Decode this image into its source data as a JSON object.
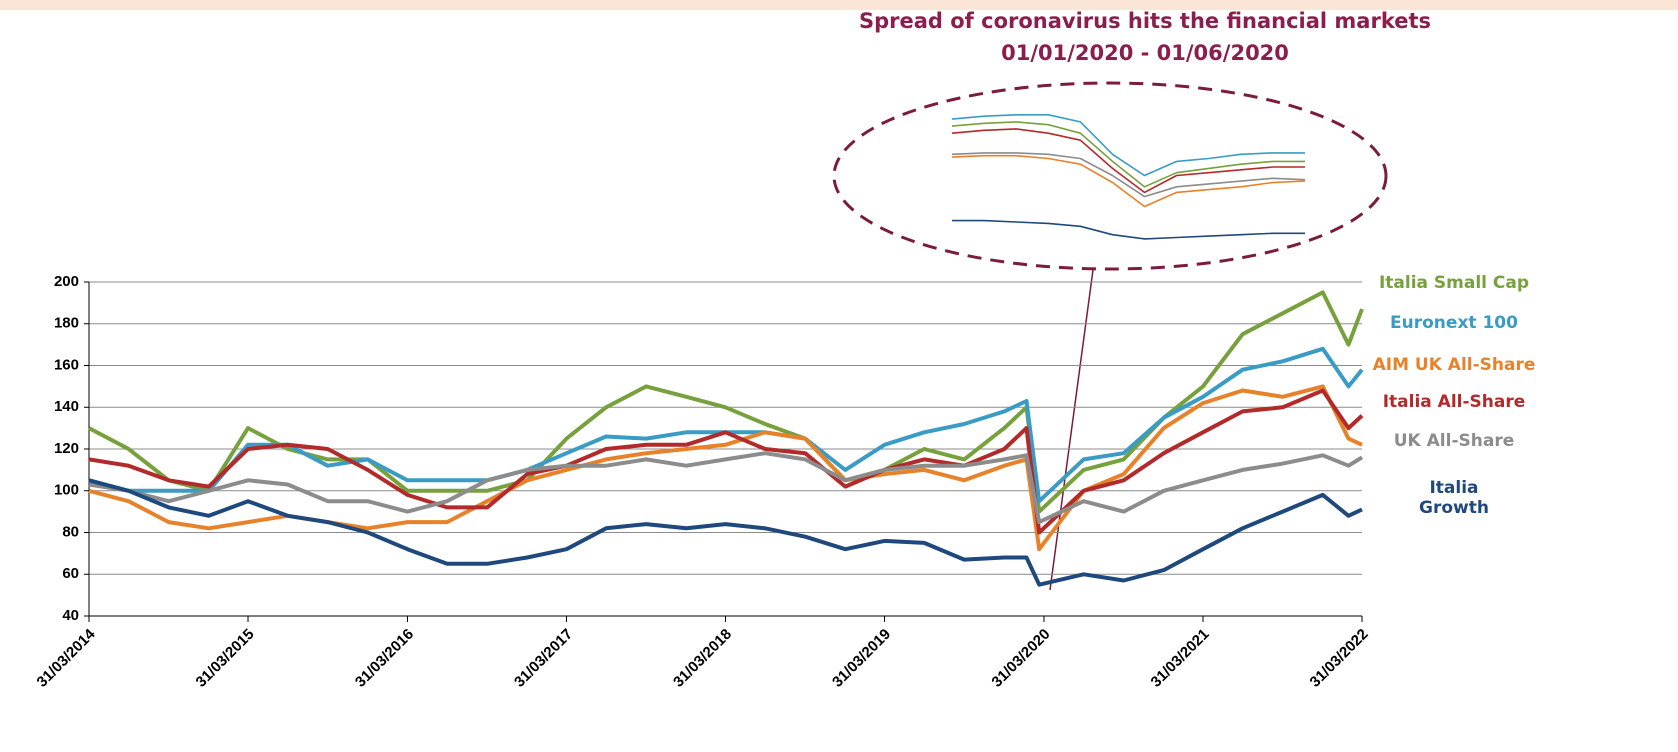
{
  "chart_data": [
    {
      "type": "line",
      "x": [
        "31/03/2014",
        "30/06/2014",
        "30/09/2014",
        "31/12/2014",
        "31/03/2015",
        "30/06/2015",
        "30/09/2015",
        "31/12/2015",
        "31/03/2016",
        "30/06/2016",
        "30/09/2016",
        "31/12/2016",
        "31/03/2017",
        "30/06/2017",
        "30/09/2017",
        "31/12/2017",
        "31/03/2018",
        "30/06/2018",
        "30/09/2018",
        "31/12/2018",
        "31/03/2019",
        "30/06/2019",
        "30/09/2019",
        "31/12/2019",
        "20/02/2020",
        "20/03/2020",
        "30/06/2020",
        "30/09/2020",
        "31/12/2020",
        "31/03/2021",
        "30/06/2021",
        "30/09/2021",
        "31/12/2021",
        "28/02/2022",
        "31/03/2022"
      ],
      "series": [
        {
          "name": "Italia Small Cap",
          "color": "#77a13c",
          "values": [
            130,
            120,
            105,
            100,
            130,
            120,
            115,
            115,
            100,
            100,
            100,
            105,
            125,
            140,
            150,
            145,
            140,
            132,
            125,
            105,
            110,
            120,
            115,
            130,
            140,
            90,
            110,
            115,
            135,
            150,
            175,
            185,
            195,
            170,
            187
          ]
        },
        {
          "name": "Euronext 100",
          "color": "#3a9cc4",
          "values": [
            105,
            100,
            100,
            100,
            122,
            122,
            112,
            115,
            105,
            105,
            105,
            110,
            118,
            126,
            125,
            128,
            128,
            128,
            125,
            110,
            122,
            128,
            132,
            138,
            143,
            95,
            115,
            118,
            135,
            145,
            158,
            162,
            168,
            150,
            158
          ]
        },
        {
          "name": "AIM UK All-Share",
          "color": "#e8822a",
          "values": [
            100,
            95,
            85,
            82,
            85,
            88,
            85,
            82,
            85,
            85,
            95,
            105,
            110,
            115,
            118,
            120,
            122,
            128,
            125,
            105,
            108,
            110,
            105,
            112,
            115,
            72,
            100,
            108,
            130,
            142,
            148,
            145,
            150,
            125,
            122
          ]
        },
        {
          "name": "Italia All-Share",
          "color": "#b22a2a",
          "values": [
            115,
            112,
            105,
            102,
            120,
            122,
            120,
            110,
            98,
            92,
            92,
            108,
            112,
            120,
            122,
            122,
            128,
            120,
            118,
            102,
            110,
            115,
            112,
            120,
            130,
            80,
            100,
            105,
            118,
            128,
            138,
            140,
            148,
            130,
            136
          ]
        },
        {
          "name": "UK All-Share",
          "color": "#8c8c8c",
          "values": [
            103,
            100,
            95,
            100,
            105,
            103,
            95,
            95,
            90,
            95,
            105,
            110,
            112,
            112,
            115,
            112,
            115,
            118,
            115,
            105,
            110,
            112,
            112,
            115,
            117,
            85,
            95,
            90,
            100,
            105,
            110,
            113,
            117,
            112,
            116
          ]
        },
        {
          "name": "Italia Growth",
          "color": "#1f497d",
          "values": [
            105,
            100,
            92,
            88,
            95,
            88,
            85,
            80,
            72,
            65,
            65,
            68,
            72,
            82,
            84,
            82,
            84,
            82,
            78,
            72,
            76,
            75,
            67,
            68,
            68,
            55,
            60,
            57,
            62,
            72,
            82,
            90,
            98,
            88,
            91
          ]
        }
      ],
      "xlim": [
        "31/03/2014",
        "31/03/2022"
      ],
      "xticks": [
        "31/03/2014",
        "31/03/2015",
        "31/03/2016",
        "31/03/2017",
        "31/03/2018",
        "31/03/2019",
        "31/03/2020",
        "31/03/2021",
        "31/03/2022"
      ],
      "ylim": [
        40,
        200
      ],
      "yticks": [
        40,
        60,
        80,
        100,
        120,
        140,
        160,
        180,
        200
      ],
      "grid": true
    },
    {
      "type": "line",
      "title": "Spread of coronavirus hits the financial markets",
      "subtitle": "01/01/2020 - 01/06/2020",
      "series": [
        {
          "color": "#3a9cc4",
          "values": [
            140,
            142,
            143,
            143,
            138,
            115,
            100,
            110,
            112,
            115,
            116,
            116
          ]
        },
        {
          "color": "#77a13c",
          "values": [
            135,
            137,
            138,
            136,
            130,
            110,
            92,
            102,
            105,
            108,
            110,
            110
          ]
        },
        {
          "color": "#b22a2a",
          "values": [
            130,
            132,
            133,
            130,
            125,
            105,
            88,
            100,
            102,
            104,
            106,
            106
          ]
        },
        {
          "color": "#8c8c8c",
          "values": [
            115,
            116,
            116,
            115,
            112,
            100,
            85,
            92,
            94,
            96,
            98,
            97
          ]
        },
        {
          "color": "#e8822a",
          "values": [
            113,
            114,
            114,
            112,
            108,
            95,
            78,
            88,
            90,
            92,
            95,
            96
          ]
        },
        {
          "color": "#1f497d",
          "values": [
            68,
            68,
            67,
            66,
            64,
            58,
            55,
            56,
            57,
            58,
            59,
            59
          ]
        }
      ],
      "ylim": [
        50,
        145
      ]
    }
  ]
}
